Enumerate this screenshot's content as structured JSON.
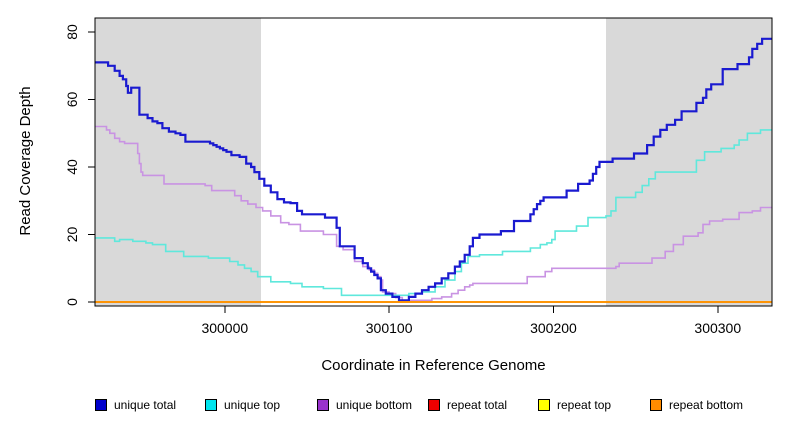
{
  "chart_data": {
    "type": "line",
    "subtype": "step-post",
    "title": "",
    "xlabel": "Coordinate in Reference Genome",
    "ylabel": "Read Coverage Depth",
    "xlim": [
      299921,
      300333
    ],
    "ylim": [
      0,
      80
    ],
    "x_ticks": [
      300000,
      300100,
      300200,
      300300
    ],
    "y_ticks": [
      0,
      20,
      40,
      60,
      80
    ],
    "grid": false,
    "legend_position": "bottom",
    "shaded_color": "#d9d9d9",
    "shaded_regions": [
      [
        299921,
        300022
      ],
      [
        300232,
        300333
      ]
    ],
    "series": [
      {
        "name": "unique total",
        "legend_color": "#0000cc",
        "line_color": "#1a1ad0",
        "width": 2.2,
        "z": 3,
        "points": [
          [
            299921,
            71
          ],
          [
            299929,
            70
          ],
          [
            299933,
            68.5
          ],
          [
            299936,
            67
          ],
          [
            299938,
            66
          ],
          [
            299940,
            64
          ],
          [
            299941,
            62
          ],
          [
            299943,
            63.5
          ],
          [
            299948,
            55.5
          ],
          [
            299953,
            54.5
          ],
          [
            299956,
            53.5
          ],
          [
            299959,
            53
          ],
          [
            299962,
            51.5
          ],
          [
            299966,
            50.5
          ],
          [
            299970,
            50
          ],
          [
            299973,
            49.5
          ],
          [
            299976,
            47.5
          ],
          [
            299991,
            47
          ],
          [
            299993,
            46.5
          ],
          [
            299995,
            46
          ],
          [
            299997,
            45.5
          ],
          [
            299999,
            45
          ],
          [
            300001,
            44.5
          ],
          [
            300004,
            43.5
          ],
          [
            300009,
            43
          ],
          [
            300013,
            41
          ],
          [
            300016,
            40
          ],
          [
            300018,
            38.5
          ],
          [
            300021,
            36.5
          ],
          [
            300024,
            34.5
          ],
          [
            300028,
            32.5
          ],
          [
            300032,
            30.5
          ],
          [
            300036,
            29.5
          ],
          [
            300040,
            29.3
          ],
          [
            300044,
            27
          ],
          [
            300047,
            26
          ],
          [
            300061,
            25
          ],
          [
            300068,
            22
          ],
          [
            300070,
            16.5
          ],
          [
            300079,
            13
          ],
          [
            300084,
            11.5
          ],
          [
            300087,
            10
          ],
          [
            300089,
            9
          ],
          [
            300091,
            8
          ],
          [
            300093,
            7
          ],
          [
            300095,
            3.5
          ],
          [
            300098,
            2.5
          ],
          [
            300102,
            1.5
          ],
          [
            300106,
            0.5
          ],
          [
            300112,
            1.5
          ],
          [
            300116,
            2.5
          ],
          [
            300120,
            3.5
          ],
          [
            300124,
            4.5
          ],
          [
            300128,
            5.5
          ],
          [
            300132,
            7
          ],
          [
            300136,
            8.5
          ],
          [
            300140,
            10.5
          ],
          [
            300143,
            12
          ],
          [
            300146,
            14
          ],
          [
            300149,
            16.5
          ],
          [
            300151,
            19
          ],
          [
            300155,
            20
          ],
          [
            300168,
            21
          ],
          [
            300176,
            24
          ],
          [
            300186,
            26
          ],
          [
            300188,
            27.5
          ],
          [
            300190,
            29
          ],
          [
            300192,
            30
          ],
          [
            300194,
            31
          ],
          [
            300208,
            33
          ],
          [
            300215,
            35
          ],
          [
            300222,
            36
          ],
          [
            300224,
            38
          ],
          [
            300226,
            40
          ],
          [
            300228,
            41.5
          ],
          [
            300236,
            42.5
          ],
          [
            300249,
            44
          ],
          [
            300257,
            46.5
          ],
          [
            300261,
            49
          ],
          [
            300265,
            51
          ],
          [
            300269,
            52.5
          ],
          [
            300274,
            54
          ],
          [
            300278,
            56.5
          ],
          [
            300287,
            59
          ],
          [
            300291,
            60.5
          ],
          [
            300293,
            63
          ],
          [
            300296,
            64.5
          ],
          [
            300303,
            69
          ],
          [
            300312,
            70.5
          ],
          [
            300319,
            72.5
          ],
          [
            300321,
            75
          ],
          [
            300324,
            76.5
          ],
          [
            300327,
            78
          ],
          [
            300333,
            78
          ]
        ]
      },
      {
        "name": "unique top",
        "legend_color": "#00e5ee",
        "line_color": "#5fe8dc",
        "width": 1.6,
        "z": 2,
        "points": [
          [
            299921,
            19
          ],
          [
            299933,
            18
          ],
          [
            299936,
            18.5
          ],
          [
            299944,
            18
          ],
          [
            299952,
            17.5
          ],
          [
            299956,
            17
          ],
          [
            299964,
            15
          ],
          [
            299975,
            13.5
          ],
          [
            299990,
            13
          ],
          [
            300003,
            12
          ],
          [
            300008,
            11
          ],
          [
            300012,
            10
          ],
          [
            300016,
            9
          ],
          [
            300020,
            7.5
          ],
          [
            300028,
            6
          ],
          [
            300040,
            5.5
          ],
          [
            300047,
            4.5
          ],
          [
            300060,
            4
          ],
          [
            300071,
            2
          ],
          [
            300112,
            2.5
          ],
          [
            300120,
            3
          ],
          [
            300128,
            4.5
          ],
          [
            300134,
            6.5
          ],
          [
            300140,
            9
          ],
          [
            300144,
            11.5
          ],
          [
            300148,
            13.5
          ],
          [
            300155,
            14
          ],
          [
            300169,
            15
          ],
          [
            300186,
            16
          ],
          [
            300192,
            17
          ],
          [
            300196,
            17.5
          ],
          [
            300199,
            18.5
          ],
          [
            300201,
            21
          ],
          [
            300214,
            22.5
          ],
          [
            300221,
            25
          ],
          [
            300232,
            25.5
          ],
          [
            300235,
            27
          ],
          [
            300238,
            31
          ],
          [
            300250,
            32.5
          ],
          [
            300254,
            34.5
          ],
          [
            300258,
            36.5
          ],
          [
            300262,
            38.5
          ],
          [
            300287,
            42
          ],
          [
            300292,
            44.5
          ],
          [
            300302,
            45.5
          ],
          [
            300310,
            46.5
          ],
          [
            300313,
            48
          ],
          [
            300318,
            50
          ],
          [
            300326,
            51
          ],
          [
            300333,
            51
          ]
        ]
      },
      {
        "name": "unique bottom",
        "legend_color": "#9932cc",
        "line_color": "#c993e3",
        "width": 1.6,
        "z": 1,
        "points": [
          [
            299921,
            52
          ],
          [
            299928,
            51
          ],
          [
            299930,
            50
          ],
          [
            299933,
            48.5
          ],
          [
            299936,
            47.5
          ],
          [
            299939,
            47
          ],
          [
            299947,
            44
          ],
          [
            299948,
            41
          ],
          [
            299949,
            38.5
          ],
          [
            299950,
            37.5
          ],
          [
            299963,
            35
          ],
          [
            299988,
            34.5
          ],
          [
            299992,
            33
          ],
          [
            300006,
            31.5
          ],
          [
            300010,
            30
          ],
          [
            300014,
            29
          ],
          [
            300019,
            28
          ],
          [
            300023,
            27
          ],
          [
            300028,
            25.5
          ],
          [
            300034,
            23.5
          ],
          [
            300039,
            23
          ],
          [
            300046,
            21
          ],
          [
            300060,
            20
          ],
          [
            300068,
            16.5
          ],
          [
            300072,
            15.5
          ],
          [
            300079,
            12
          ],
          [
            300084,
            10.5
          ],
          [
            300088,
            9.5
          ],
          [
            300091,
            8.5
          ],
          [
            300093,
            7.5
          ],
          [
            300095,
            6.5
          ],
          [
            300096,
            3
          ],
          [
            300100,
            2.5
          ],
          [
            300104,
            1.3
          ],
          [
            300108,
            0.5
          ],
          [
            300126,
            1
          ],
          [
            300132,
            1.5
          ],
          [
            300138,
            2.5
          ],
          [
            300142,
            3.5
          ],
          [
            300146,
            4.5
          ],
          [
            300149,
            5
          ],
          [
            300151,
            5.5
          ],
          [
            300184,
            7.5
          ],
          [
            300195,
            9
          ],
          [
            300199,
            10
          ],
          [
            300238,
            10.5
          ],
          [
            300240,
            11.5
          ],
          [
            300260,
            13
          ],
          [
            300268,
            15
          ],
          [
            300273,
            17
          ],
          [
            300279,
            19.5
          ],
          [
            300288,
            20.5
          ],
          [
            300291,
            23
          ],
          [
            300295,
            24
          ],
          [
            300303,
            24.5
          ],
          [
            300313,
            26.5
          ],
          [
            300321,
            27
          ],
          [
            300326,
            28
          ],
          [
            300333,
            28
          ]
        ]
      },
      {
        "name": "repeat total",
        "legend_color": "#ee0000",
        "line_color": "#dd0000",
        "width": 1.6,
        "z": 4,
        "points": [
          [
            299921,
            0
          ],
          [
            300333,
            0
          ]
        ]
      },
      {
        "name": "repeat top",
        "legend_color": "#ffff00",
        "line_color": "#ffee00",
        "width": 1.6,
        "z": 5,
        "points": [
          [
            299921,
            0
          ],
          [
            300333,
            0
          ]
        ]
      },
      {
        "name": "repeat bottom",
        "legend_color": "#ff8c00",
        "line_color": "#ff9100",
        "width": 1.8,
        "z": 6,
        "points": [
          [
            299921,
            0
          ],
          [
            300333,
            0
          ]
        ]
      }
    ]
  }
}
